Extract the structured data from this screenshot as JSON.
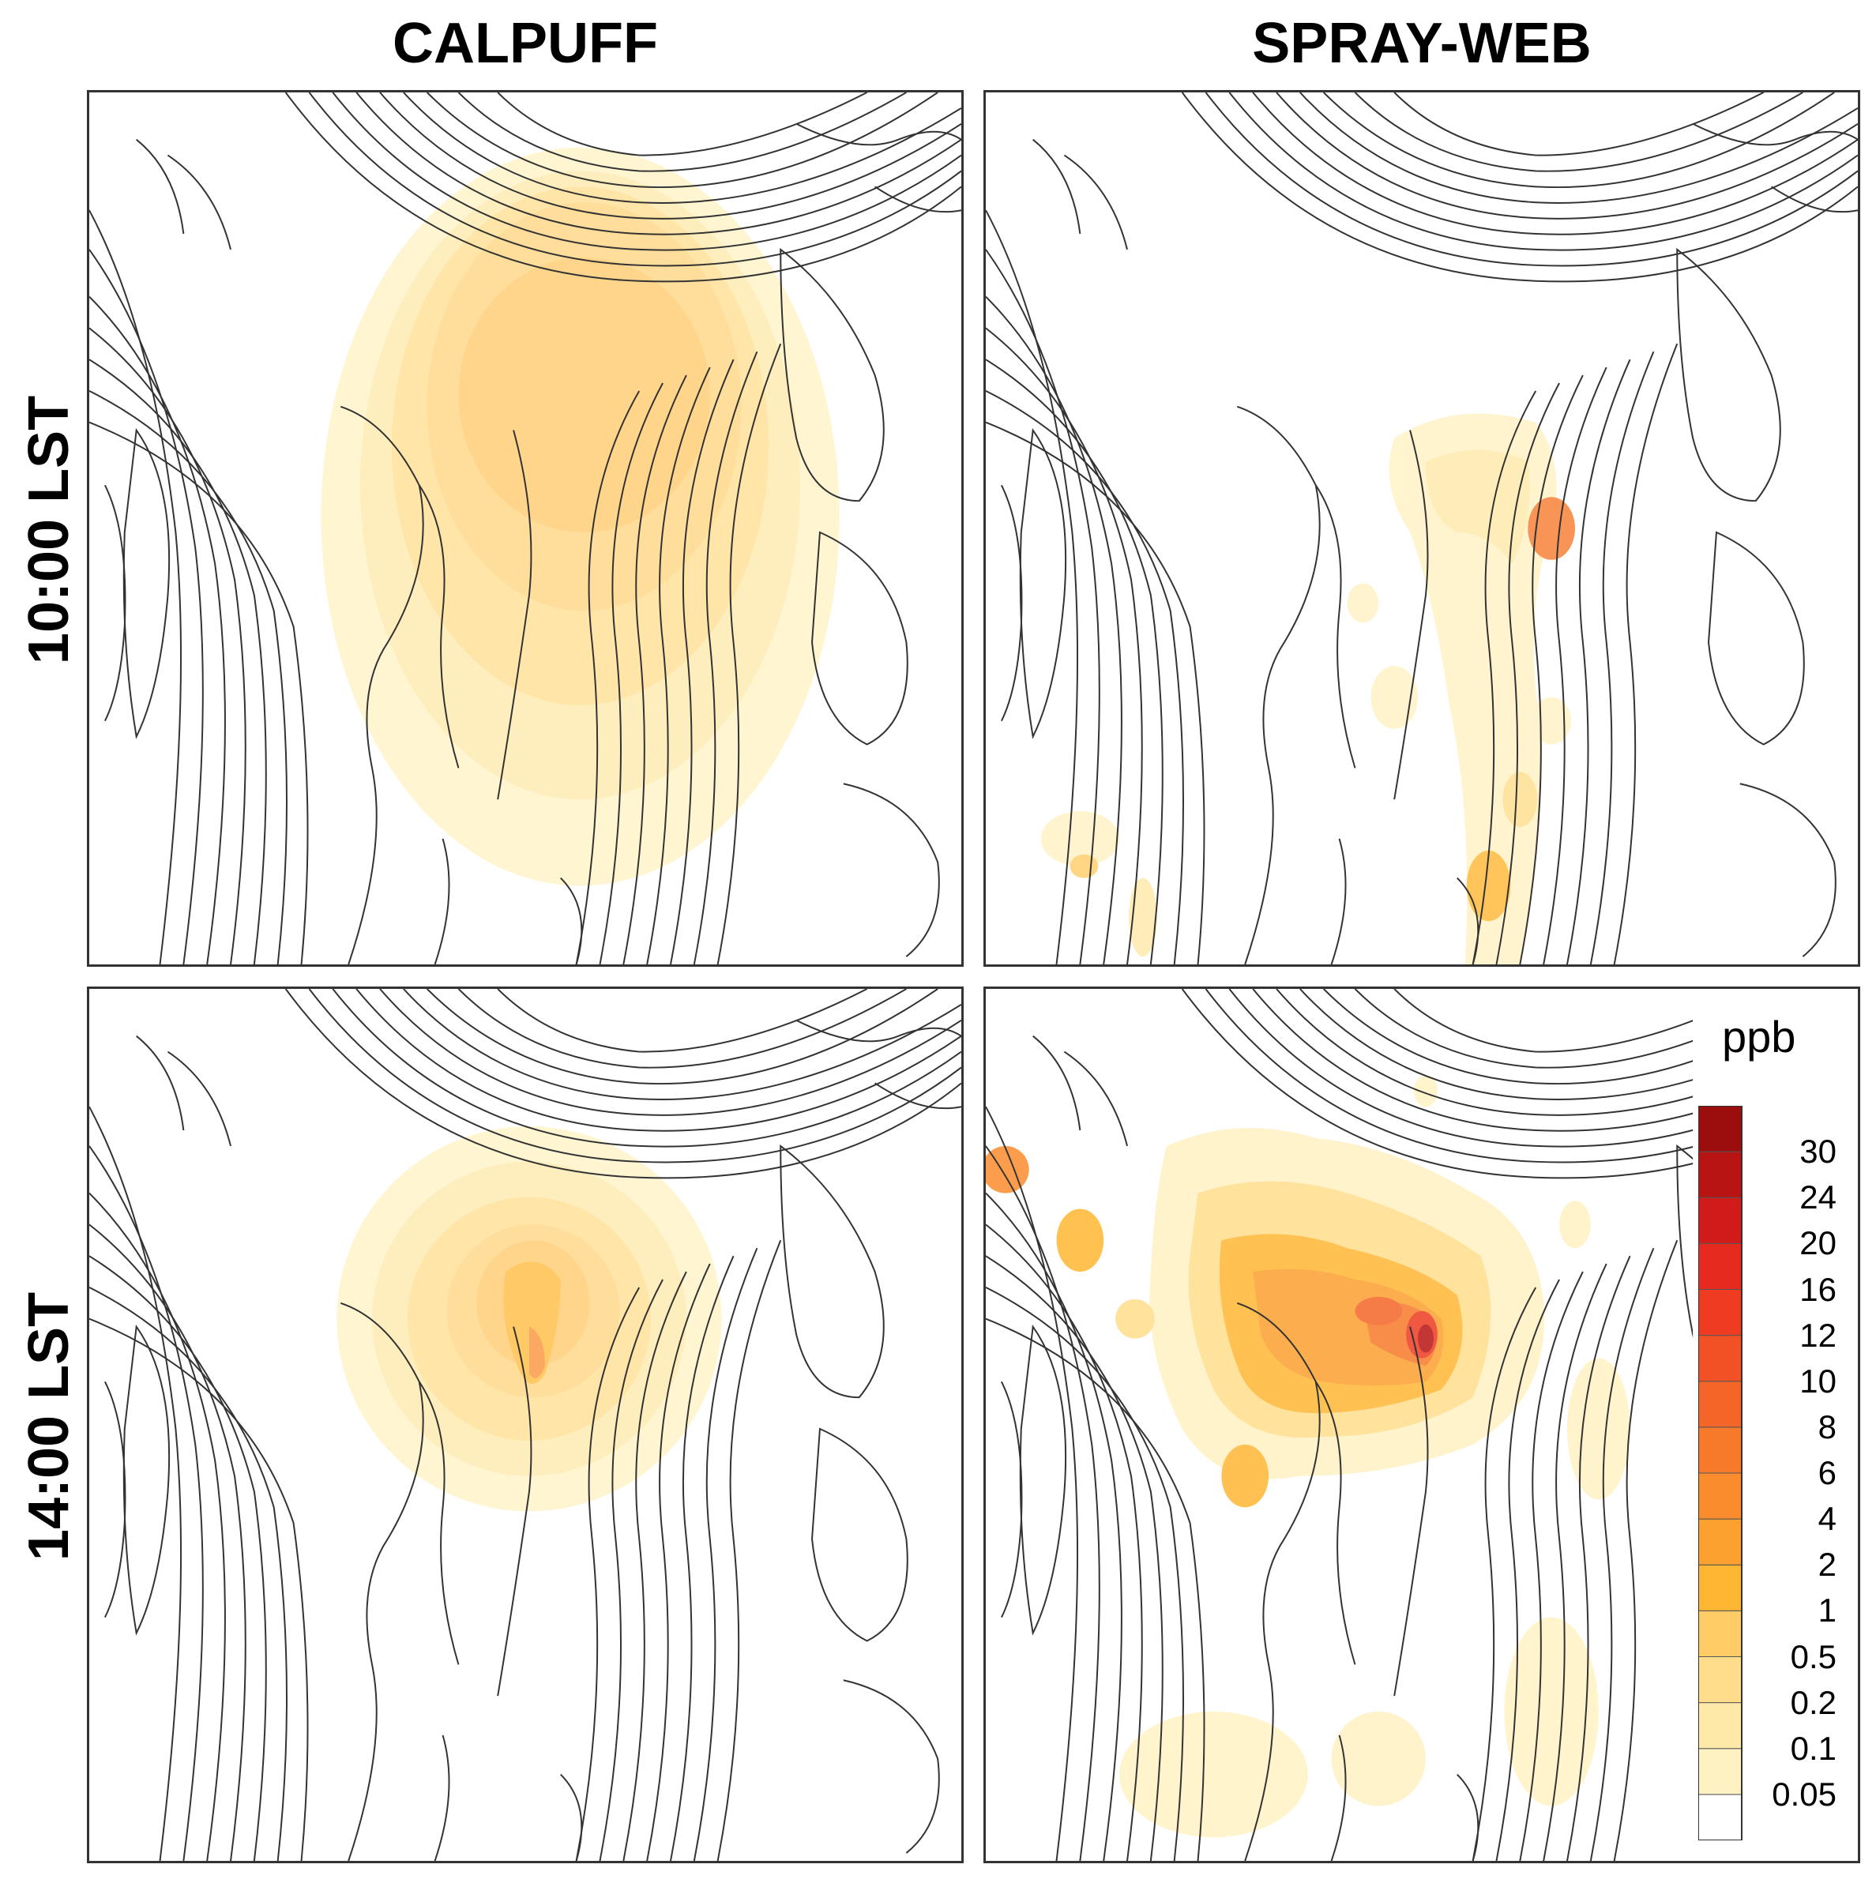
{
  "columns": [
    "CALPUFF",
    "SPRAY-WEB"
  ],
  "rows": [
    "10:00 LST",
    "14:00 LST"
  ],
  "legend": {
    "unit": "ppb",
    "levels": [
      "0.05",
      "0.1",
      "0.2",
      "0.5",
      "1",
      "2",
      "4",
      "6",
      "8",
      "10",
      "12",
      "16",
      "20",
      "24",
      "30"
    ],
    "colors": [
      "#ffffff",
      "#fff2c2",
      "#ffe9a8",
      "#ffdd8a",
      "#ffcc66",
      "#ffb733",
      "#fca030",
      "#fa8c2e",
      "#f77a2b",
      "#f46628",
      "#f25125",
      "#ee3b22",
      "#e62a1f",
      "#d11a1a",
      "#b81414",
      "#9c0e0e"
    ]
  }
}
